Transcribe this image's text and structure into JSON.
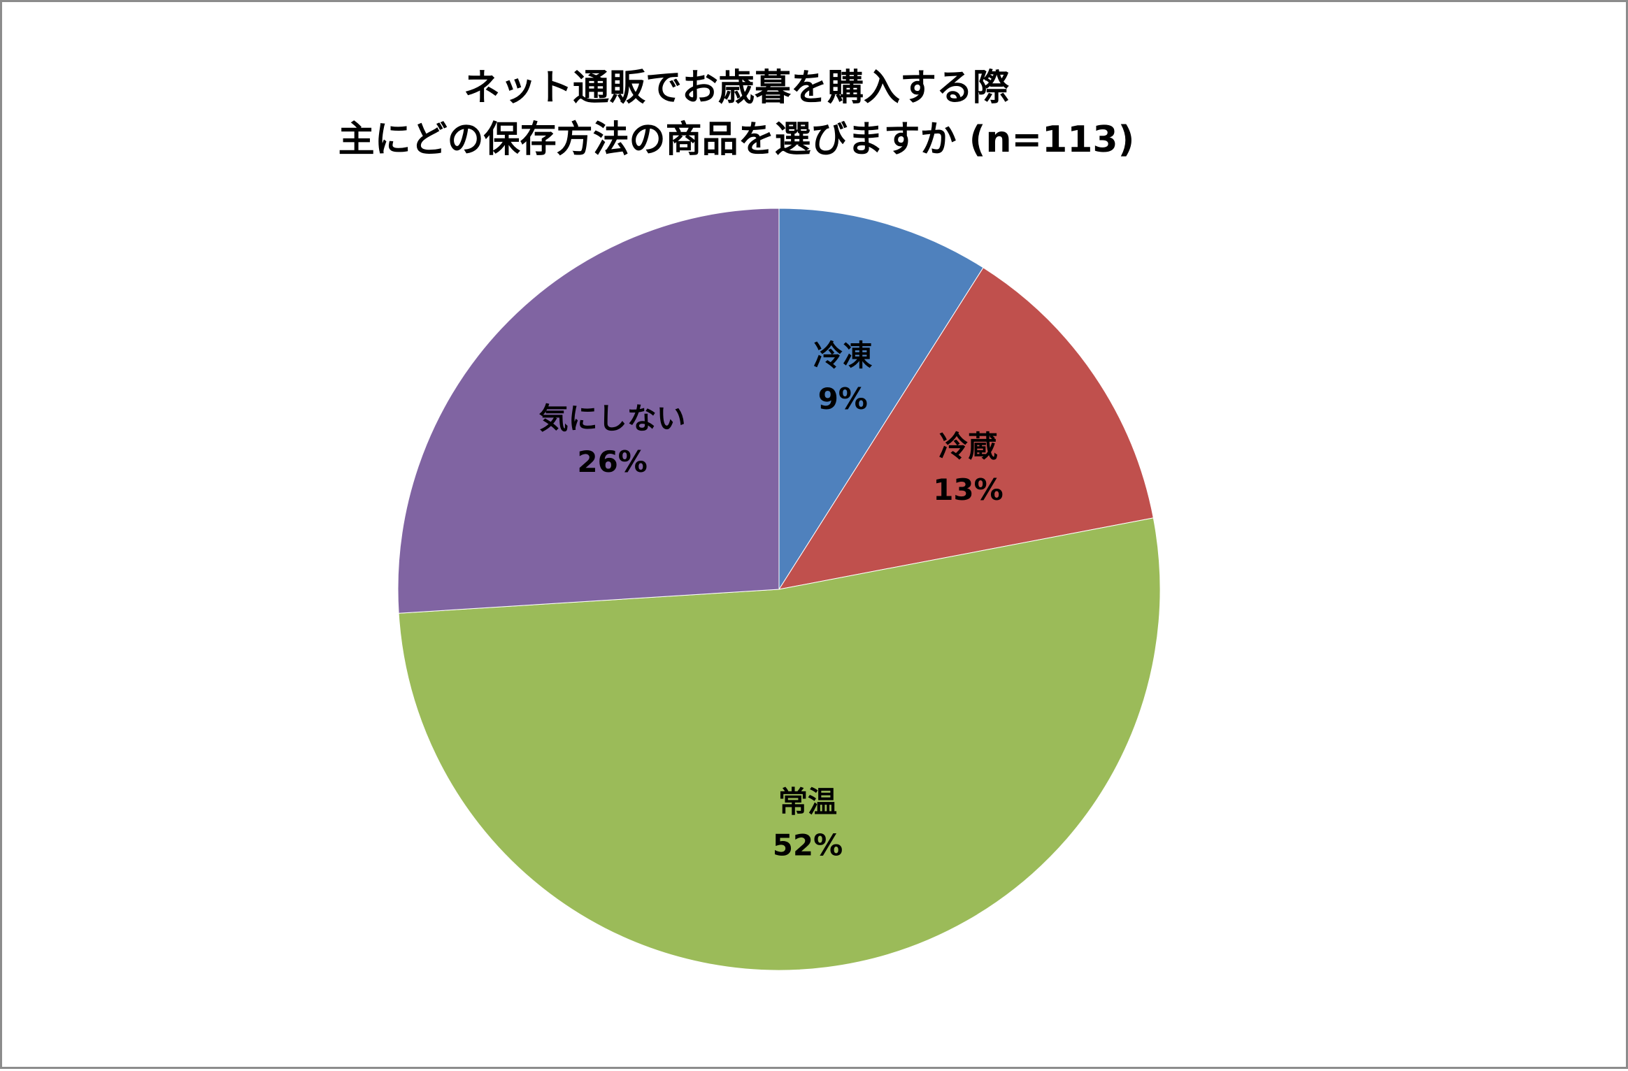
{
  "chart_data": {
    "type": "pie",
    "title_lines": [
      "ネット通販でお歳暮を購入する際",
      "主にどの保存方法の商品を選びますか (n=113)"
    ],
    "start_angle_deg": 0,
    "direction": "clockwise",
    "slices": [
      {
        "label": "冷凍",
        "value": 9,
        "percent_label": "9%",
        "color": "#4f81bd"
      },
      {
        "label": "冷蔵",
        "value": 13,
        "percent_label": "13%",
        "color": "#c0504d"
      },
      {
        "label": "常温",
        "value": 52,
        "percent_label": "52%",
        "color": "#9bbb59"
      },
      {
        "label": "気にしない",
        "value": 26,
        "percent_label": "26%",
        "color": "#8064a2"
      }
    ],
    "legend": "none",
    "data_labels": "inside"
  }
}
